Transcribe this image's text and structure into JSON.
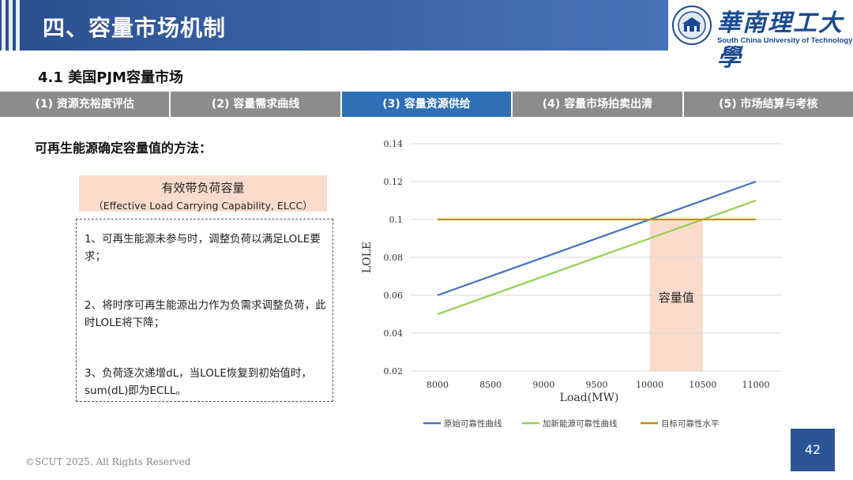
{
  "header": {
    "title": "四、容量市场机制"
  },
  "logo": {
    "cn_name": "華南理工大學",
    "en_name": "South China University of Technology"
  },
  "subtitle": "4.1 美国PJM容量市场",
  "tabs": [
    {
      "label": "(1) 资源充裕度评估",
      "active": false
    },
    {
      "label": "(2) 容量需求曲线",
      "active": false
    },
    {
      "label": "(3) 容量资源供给",
      "active": true
    },
    {
      "label": "(4) 容量市场拍卖出清",
      "active": false
    },
    {
      "label": "(5) 市场结算与考核",
      "active": false
    }
  ],
  "content": {
    "section_label": "可再生能源确定容量值的方法：",
    "elcc_title": "有效带负荷容量",
    "elcc_subtitle": "（Effective Load Carrying Capability, ELCC）",
    "steps": [
      "1、可再生能源未参与时，调整负荷以满足LOLE要求；",
      "2、将时序可再生能源出力作为负需求调整负荷，此时LOLE将下降；",
      "3、负荷逐次递增dL，当LOLE恢复到初始值时，sum(dL)即为ECLL。"
    ]
  },
  "chart_data": {
    "type": "line",
    "x": [
      8000,
      8500,
      9000,
      9500,
      10000,
      10500,
      11000
    ],
    "xlabel": "Load(MW)",
    "ylabel": "LOLE",
    "ylim": [
      0.02,
      0.14
    ],
    "xlim": [
      8000,
      11000
    ],
    "yticks": [
      "0.14",
      "0.12",
      "0.1",
      "0.08",
      "0.06",
      "0.04",
      "0.02"
    ],
    "xticks": [
      "8000",
      "8500",
      "9000",
      "9500",
      "10000",
      "10500",
      "11000"
    ],
    "grid": true,
    "legend_position": "bottom",
    "series": [
      {
        "name": "原始可靠性曲线",
        "color": "#4472c4",
        "points": [
          [
            8000,
            0.06
          ],
          [
            11000,
            0.12
          ]
        ]
      },
      {
        "name": "加新能源可靠性曲线",
        "color": "#92d050",
        "points": [
          [
            8000,
            0.05
          ],
          [
            10000,
            0.09
          ],
          [
            11000,
            0.11
          ]
        ]
      },
      {
        "name": "目标可靠性水平",
        "color": "#c09000",
        "points": [
          [
            8000,
            0.1
          ],
          [
            11000,
            0.1
          ]
        ]
      }
    ],
    "shaded_region": {
      "x_range": [
        10000,
        10500
      ],
      "label": "容量值",
      "color": "#fbdccc"
    }
  },
  "footer": {
    "copyright": "©SCUT 2025. All Rights Reserved",
    "page": "42"
  }
}
